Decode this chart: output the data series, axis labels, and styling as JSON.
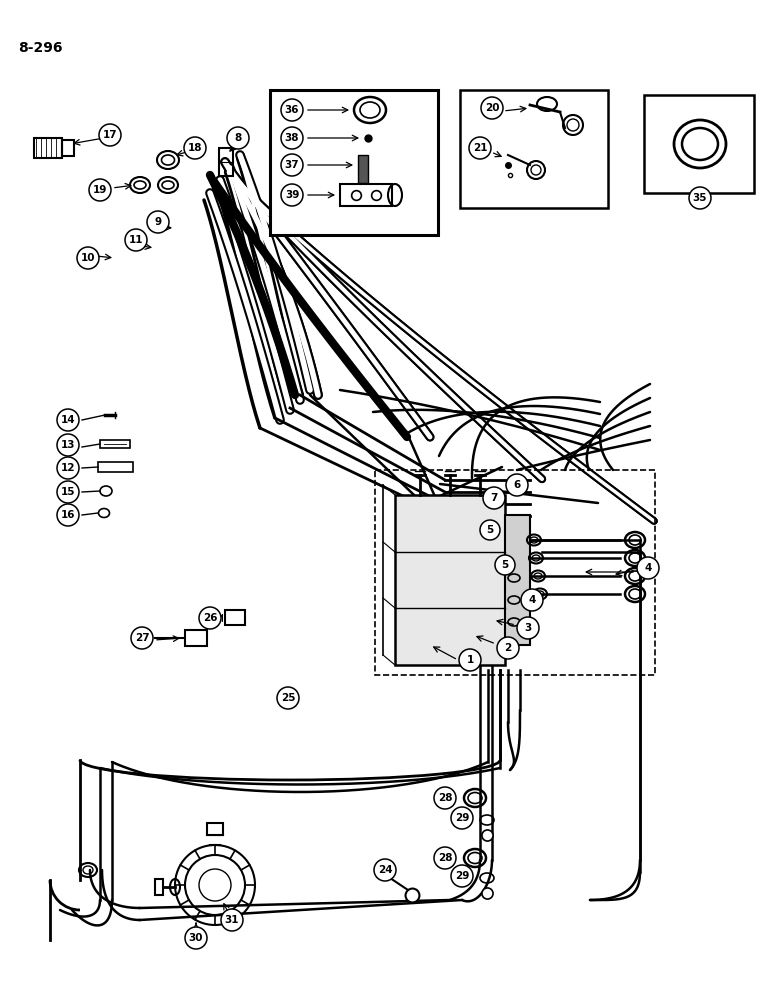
{
  "page_label": "8-296",
  "bg_color": "#ffffff",
  "line_color": "#000000",
  "fig_width": 7.72,
  "fig_height": 10.0,
  "dpi": 100
}
